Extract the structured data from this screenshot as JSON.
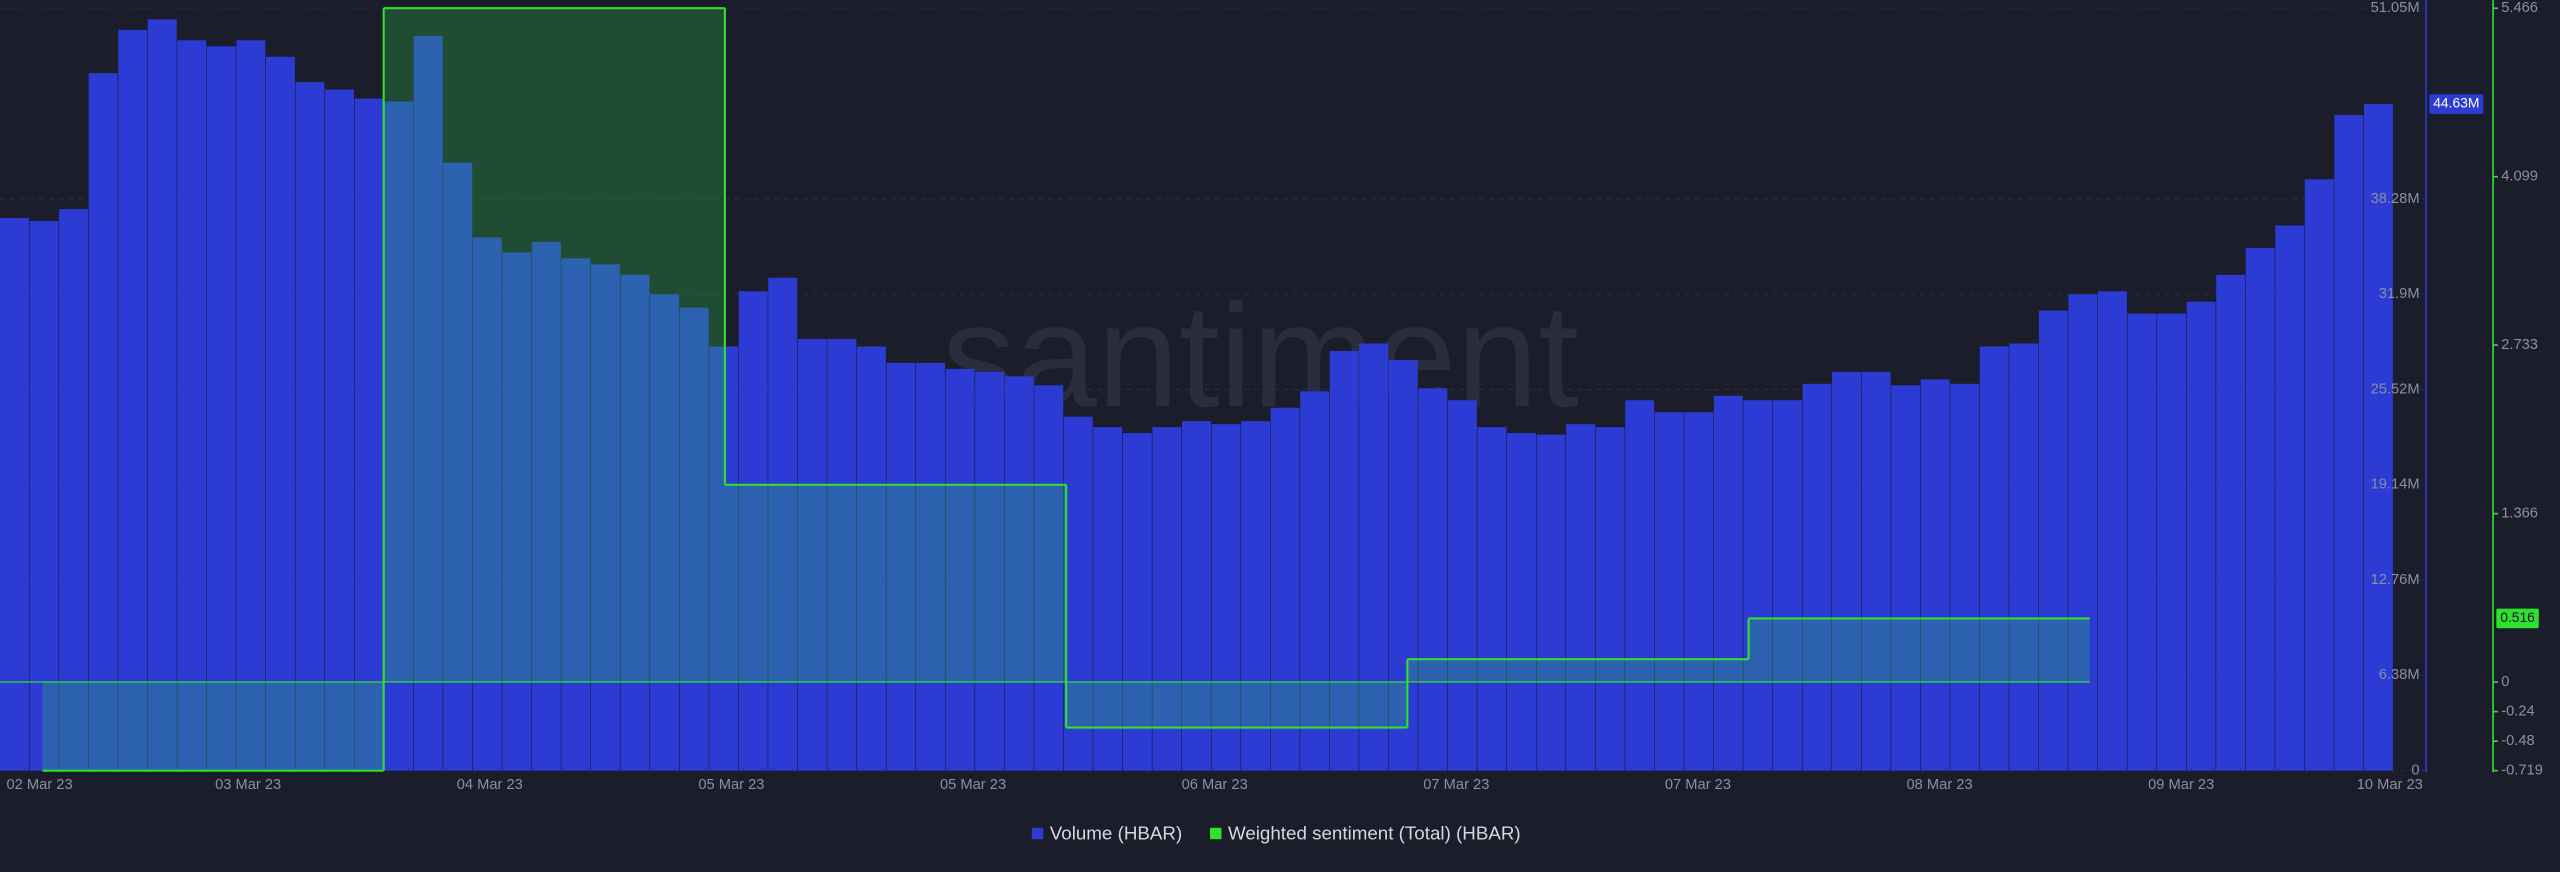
{
  "chart_data": {
    "type": "bar_step",
    "watermark": "santiment",
    "xtick_labels": [
      "02 Mar 23",
      "03 Mar 23",
      "04 Mar 23",
      "05 Mar 23",
      "05 Mar 23",
      "06 Mar 23",
      "07 Mar 23",
      "07 Mar 23",
      "08 Mar 23",
      "09 Mar 23",
      "10 Mar 23"
    ],
    "ylim": [
      0,
      51.05
    ],
    "yticks": [
      {
        "value": 0,
        "label": "0"
      },
      {
        "value": 6.38,
        "label": "6.38M"
      },
      {
        "value": 12.76,
        "label": "12.76M"
      },
      {
        "value": 19.14,
        "label": "19.14M"
      },
      {
        "value": 25.52,
        "label": "25.52M"
      },
      {
        "value": 31.9,
        "label": "31.9M"
      },
      {
        "value": 38.28,
        "label": "38.28M"
      },
      {
        "value": 51.05,
        "label": "51.05M"
      }
    ],
    "y2lim": [
      -0.719,
      5.466
    ],
    "y2ticks": [
      -0.719,
      -0.48,
      -0.24,
      0,
      1.366,
      2.733,
      4.099,
      5.466
    ],
    "grid": true,
    "series": [
      {
        "name": "Volume (HBAR)",
        "color": "#2b3bd4",
        "current": {
          "value": 44.63,
          "label": "44.63M"
        },
        "values": [
          37.0,
          36.8,
          37.6,
          46.7,
          49.6,
          50.3,
          48.9,
          48.5,
          48.9,
          47.8,
          46.1,
          45.6,
          45.0,
          44.8,
          49.2,
          40.7,
          35.7,
          34.7,
          35.4,
          34.3,
          33.9,
          33.2,
          31.9,
          31.0,
          28.4,
          32.1,
          33.0,
          28.9,
          28.9,
          28.4,
          27.3,
          27.3,
          26.9,
          26.7,
          26.4,
          25.8,
          23.7,
          23.0,
          22.6,
          23.0,
          23.4,
          23.2,
          23.4,
          24.3,
          25.4,
          28.1,
          28.6,
          27.5,
          25.6,
          24.8,
          23.0,
          22.6,
          22.5,
          23.2,
          23.0,
          24.8,
          24.0,
          24.0,
          25.1,
          24.8,
          24.8,
          25.9,
          26.7,
          26.7,
          25.8,
          26.2,
          25.9,
          28.4,
          28.6,
          30.8,
          31.9,
          32.1,
          30.6,
          30.6,
          31.4,
          33.2,
          35.0,
          36.5,
          39.6,
          43.9,
          44.63
        ]
      },
      {
        "name": "Weighted sentiment (Total) (HBAR)",
        "color": "#2de12d",
        "axis": "y2",
        "current": {
          "value": 0.516,
          "label": "0.516"
        },
        "values": [
          -0.719,
          5.466,
          1.6,
          -0.37,
          0.185,
          0.516
        ]
      }
    ]
  }
}
